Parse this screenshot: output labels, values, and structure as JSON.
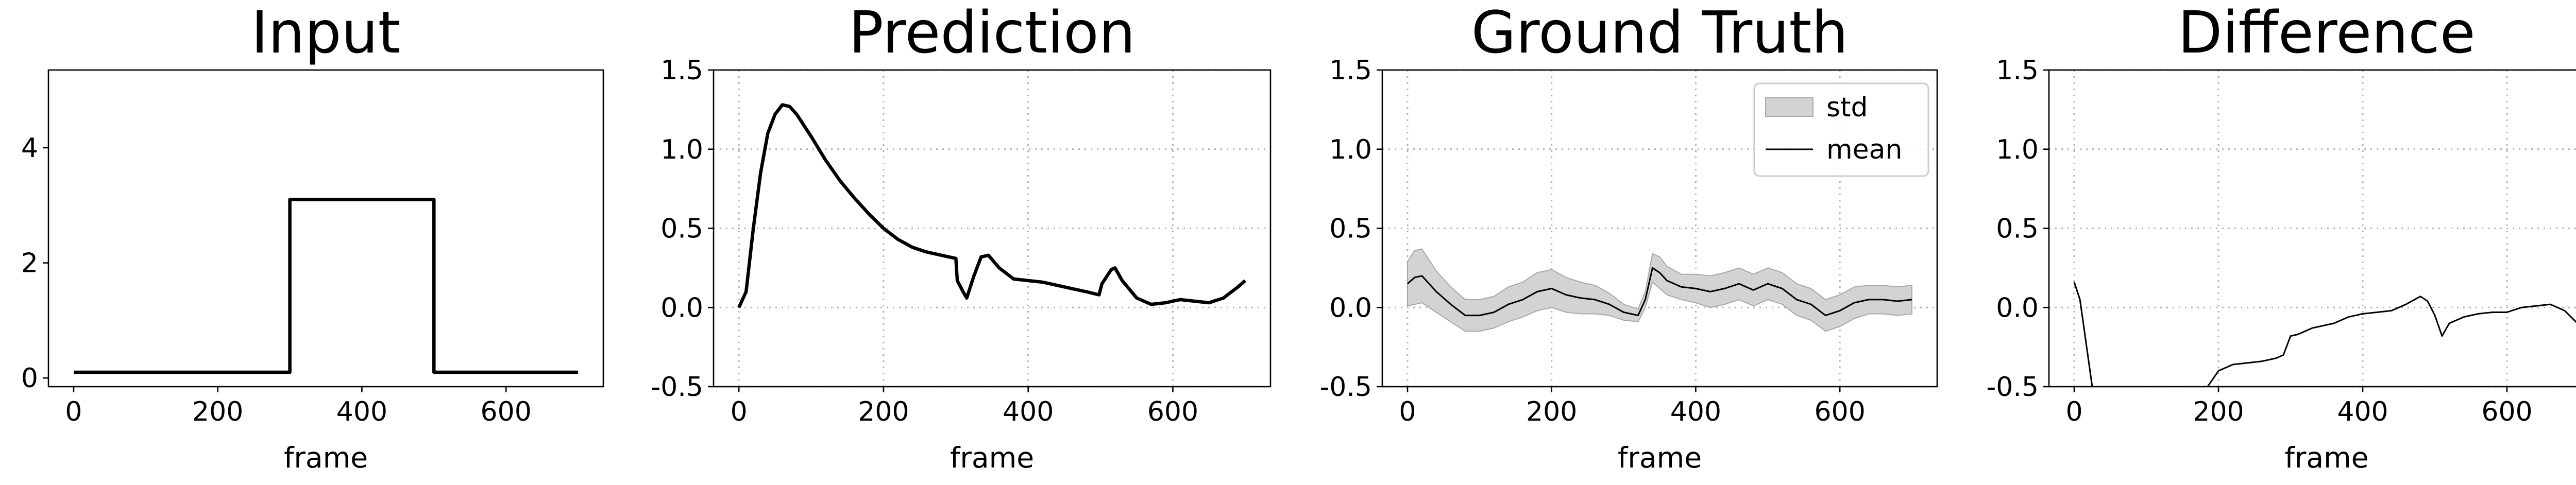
{
  "chart_data": [
    {
      "type": "line",
      "title": "Input",
      "xlabel": "frame",
      "x": [
        0,
        300,
        300,
        500,
        500,
        700
      ],
      "series": [
        {
          "color": "#000000",
          "values": [
            0.1,
            0.1,
            3.1,
            3.1,
            0.1,
            0.1
          ]
        }
      ],
      "xlim": [
        -35,
        735
      ],
      "ylim": [
        -0.15,
        5.35
      ],
      "xticks": [
        0,
        200,
        400,
        600
      ],
      "yticks": [
        0,
        2,
        4
      ],
      "grid": false
    },
    {
      "type": "line",
      "title": "Prediction",
      "xlabel": "frame",
      "x": [
        0,
        10,
        20,
        30,
        40,
        50,
        60,
        70,
        80,
        100,
        120,
        140,
        160,
        180,
        200,
        220,
        240,
        260,
        280,
        300,
        302,
        310,
        315,
        325,
        335,
        345,
        360,
        380,
        400,
        420,
        440,
        460,
        480,
        498,
        502,
        515,
        520,
        530,
        550,
        570,
        590,
        610,
        630,
        650,
        670,
        690,
        700
      ],
      "series": [
        {
          "color": "#000000",
          "values": [
            0,
            0.1,
            0.5,
            0.85,
            1.1,
            1.22,
            1.28,
            1.27,
            1.22,
            1.08,
            0.93,
            0.8,
            0.69,
            0.59,
            0.5,
            0.43,
            0.38,
            0.35,
            0.33,
            0.31,
            0.17,
            0.1,
            0.06,
            0.2,
            0.32,
            0.33,
            0.25,
            0.18,
            0.17,
            0.16,
            0.14,
            0.12,
            0.1,
            0.08,
            0.15,
            0.24,
            0.25,
            0.17,
            0.06,
            0.02,
            0.03,
            0.05,
            0.04,
            0.03,
            0.06,
            0.13,
            0.17
          ]
        }
      ],
      "xlim": [
        -35,
        735
      ],
      "ylim": [
        -0.5,
        1.5
      ],
      "xticks": [
        0,
        200,
        400,
        600
      ],
      "yticks": [
        -0.5,
        0.0,
        0.5,
        1.0,
        1.5
      ],
      "grid": true
    },
    {
      "type": "band",
      "title": "Ground Truth",
      "xlabel": "frame",
      "x": [
        0,
        10,
        20,
        40,
        60,
        80,
        100,
        120,
        140,
        160,
        180,
        200,
        220,
        240,
        260,
        280,
        300,
        320,
        330,
        340,
        350,
        360,
        380,
        400,
        420,
        440,
        460,
        480,
        500,
        520,
        540,
        560,
        580,
        600,
        620,
        640,
        660,
        680,
        700
      ],
      "series": [
        {
          "name": "std",
          "color": "#d3d3d3",
          "values": [
            0.14,
            0.17,
            0.17,
            0.13,
            0.11,
            0.1,
            0.1,
            0.1,
            0.11,
            0.11,
            0.12,
            0.12,
            0.11,
            0.1,
            0.09,
            0.07,
            0.05,
            0.04,
            0.05,
            0.09,
            0.1,
            0.09,
            0.08,
            0.09,
            0.1,
            0.1,
            0.1,
            0.1,
            0.1,
            0.1,
            0.1,
            0.1,
            0.1,
            0.1,
            0.1,
            0.09,
            0.09,
            0.09,
            0.09
          ]
        },
        {
          "name": "mean",
          "color": "#000000",
          "values": [
            0.15,
            0.19,
            0.2,
            0.1,
            0.02,
            -0.05,
            -0.05,
            -0.03,
            0.02,
            0.05,
            0.1,
            0.12,
            0.08,
            0.06,
            0.05,
            0.02,
            -0.03,
            -0.05,
            0.05,
            0.25,
            0.22,
            0.17,
            0.13,
            0.12,
            0.1,
            0.12,
            0.15,
            0.11,
            0.15,
            0.12,
            0.05,
            0.02,
            -0.05,
            -0.02,
            0.03,
            0.05,
            0.05,
            0.04,
            0.05
          ]
        }
      ],
      "xlim": [
        -35,
        735
      ],
      "ylim": [
        -0.5,
        1.5
      ],
      "xticks": [
        0,
        200,
        400,
        600
      ],
      "yticks": [
        -0.5,
        0.0,
        0.5,
        1.0,
        1.5
      ],
      "grid": true,
      "legend": "upper right"
    },
    {
      "type": "line",
      "title": "Difference",
      "xlabel": "frame",
      "x": [
        0,
        8,
        25,
        100,
        185,
        200,
        220,
        240,
        260,
        280,
        290,
        300,
        310,
        330,
        360,
        380,
        400,
        420,
        440,
        460,
        480,
        490,
        500,
        510,
        520,
        540,
        560,
        580,
        600,
        620,
        640,
        660,
        680,
        700
      ],
      "series": [
        {
          "color": "#000000",
          "values": [
            0.16,
            0.05,
            -0.5,
            null,
            -0.5,
            -0.4,
            -0.36,
            -0.35,
            -0.34,
            -0.32,
            -0.3,
            -0.18,
            -0.17,
            -0.13,
            -0.1,
            -0.06,
            -0.04,
            -0.03,
            -0.02,
            0.02,
            0.07,
            0.04,
            -0.05,
            -0.18,
            -0.1,
            -0.06,
            -0.04,
            -0.03,
            -0.03,
            0.0,
            0.01,
            0.02,
            -0.02,
            -0.11
          ]
        }
      ],
      "xlim": [
        -35,
        735
      ],
      "ylim": [
        -0.5,
        1.5
      ],
      "xticks": [
        0,
        200,
        400,
        600
      ],
      "yticks": [
        -0.5,
        0.0,
        0.5,
        1.0,
        1.5
      ],
      "grid": true
    }
  ]
}
